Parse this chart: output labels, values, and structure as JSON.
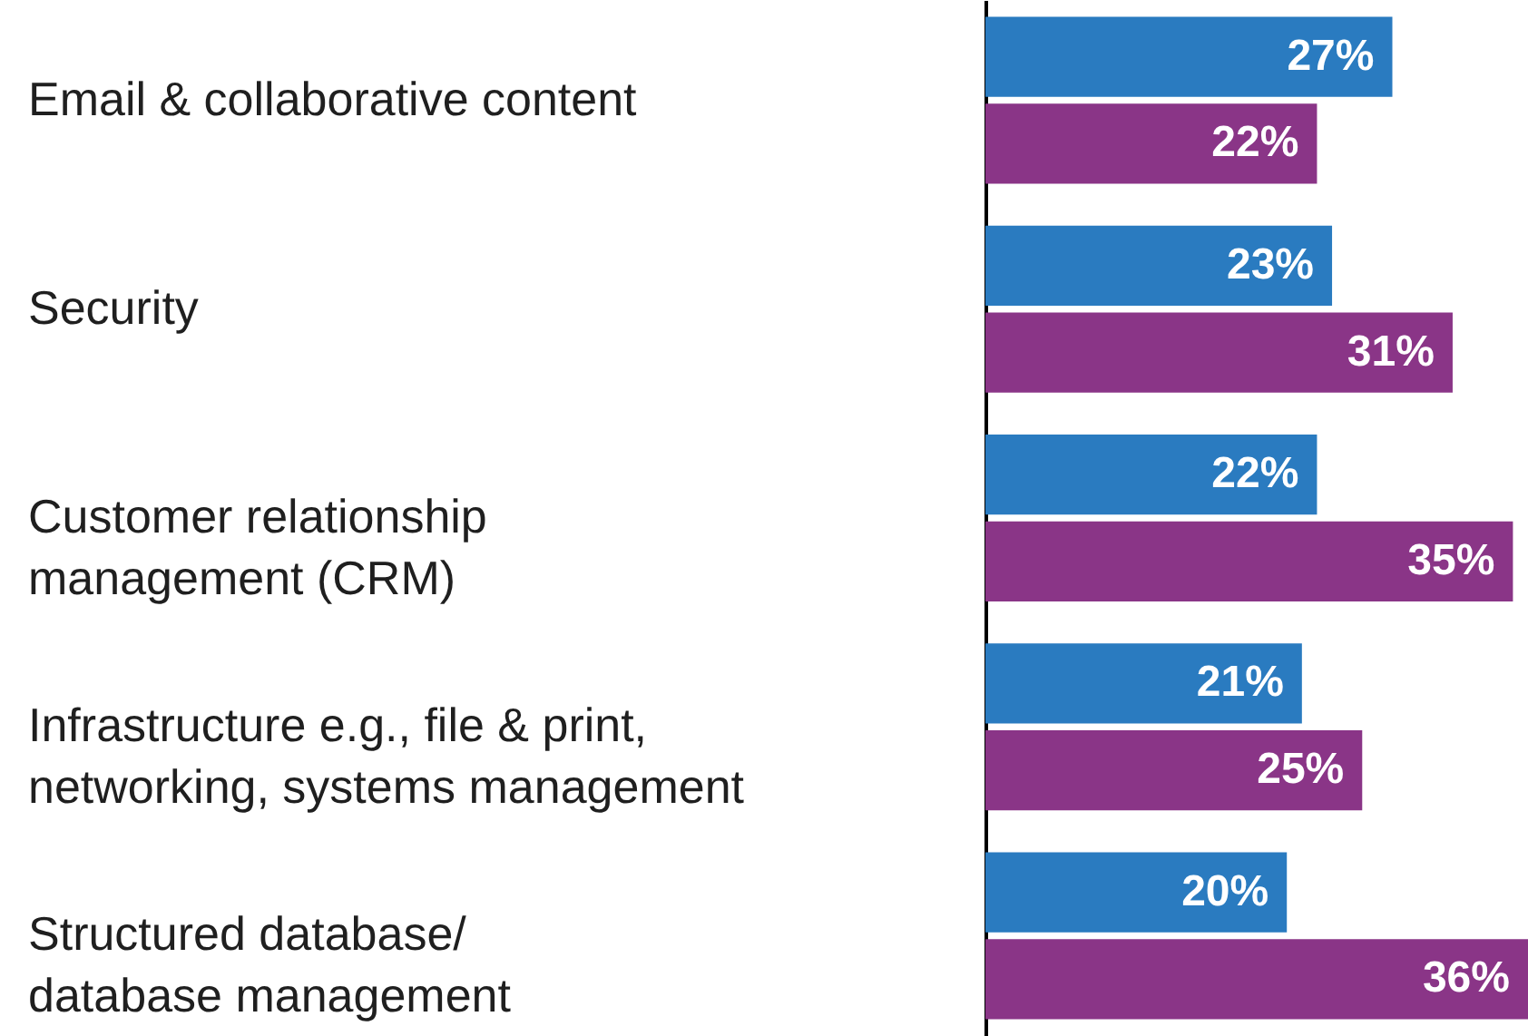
{
  "chart_data": {
    "type": "bar",
    "orientation": "horizontal",
    "categories": [
      "Email & collaborative content",
      "Security",
      "Customer relationship\nmanagement (CRM)",
      "Infrastructure e.g., file & print,\nnetworking, systems management",
      "Structured database/\ndatabase management"
    ],
    "series": [
      {
        "color": "#2a7bc0",
        "values": [
          27,
          23,
          22,
          21,
          20
        ],
        "value_labels": [
          "27%",
          "23%",
          "22%",
          "21%",
          "20%"
        ]
      },
      {
        "color": "#8a3587",
        "values": [
          22,
          31,
          35,
          25,
          36
        ],
        "value_labels": [
          "22%",
          "31%",
          "35%",
          "25%",
          "36%"
        ]
      }
    ],
    "tick_labels": "y"
  }
}
